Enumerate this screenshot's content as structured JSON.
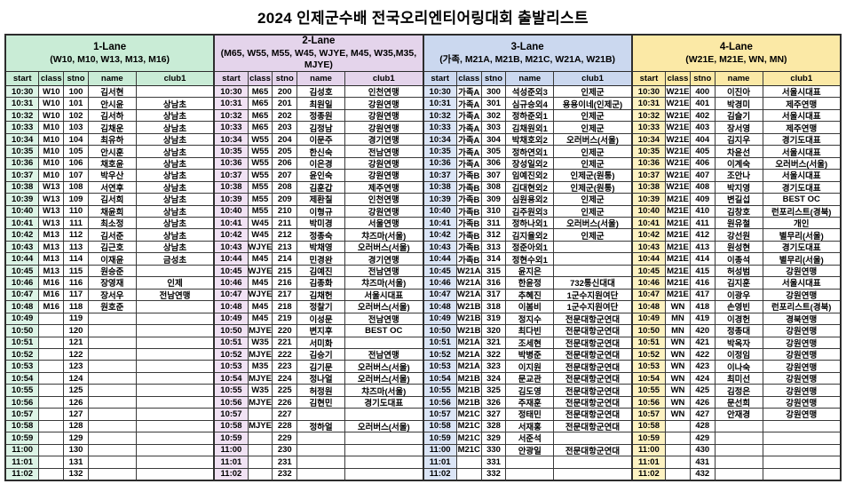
{
  "title": "2024 인제군수배 전국오리엔티어링대회 출발리스트",
  "columns": [
    "start",
    "class",
    "stno",
    "name",
    "club1"
  ],
  "lanes": [
    {
      "name": "1-Lane",
      "classes": "(W10, M10, W13, M13, M16)",
      "header_bg": "#c9ecd6",
      "cell_bg": "#dcf4e6",
      "rows": [
        [
          "10:30",
          "W10",
          "100",
          "김서현",
          ""
        ],
        [
          "10:31",
          "W10",
          "101",
          "안시윤",
          "상남초"
        ],
        [
          "10:32",
          "W10",
          "102",
          "김서하",
          "상남초"
        ],
        [
          "10:33",
          "M10",
          "103",
          "김채운",
          "상남초"
        ],
        [
          "10:34",
          "M10",
          "104",
          "최유하",
          "상남초"
        ],
        [
          "10:35",
          "M10",
          "105",
          "안시훈",
          "상남초"
        ],
        [
          "10:36",
          "M10",
          "106",
          "채호윤",
          "상남초"
        ],
        [
          "10:37",
          "M10",
          "107",
          "박우산",
          "상남초"
        ],
        [
          "10:38",
          "W13",
          "108",
          "서연후",
          "상남초"
        ],
        [
          "10:39",
          "W13",
          "109",
          "김서희",
          "상남초"
        ],
        [
          "10:40",
          "W13",
          "110",
          "채윤희",
          "상남초"
        ],
        [
          "10:41",
          "W13",
          "111",
          "최소정",
          "상남초"
        ],
        [
          "10:42",
          "M13",
          "112",
          "김서준",
          "상남초"
        ],
        [
          "10:43",
          "M13",
          "113",
          "김근호",
          "상남초"
        ],
        [
          "10:44",
          "M13",
          "114",
          "이재윤",
          "금성초"
        ],
        [
          "10:45",
          "M13",
          "115",
          "원승준",
          ""
        ],
        [
          "10:46",
          "M16",
          "116",
          "장영재",
          "인제"
        ],
        [
          "10:47",
          "M16",
          "117",
          "장서우",
          "전남연맹"
        ],
        [
          "10:48",
          "M16",
          "118",
          "원호준",
          ""
        ],
        [
          "10:49",
          "",
          "119",
          "",
          ""
        ],
        [
          "10:50",
          "",
          "120",
          "",
          ""
        ],
        [
          "10:51",
          "",
          "121",
          "",
          ""
        ],
        [
          "10:52",
          "",
          "122",
          "",
          ""
        ],
        [
          "10:53",
          "",
          "123",
          "",
          ""
        ],
        [
          "10:54",
          "",
          "124",
          "",
          ""
        ],
        [
          "10:55",
          "",
          "125",
          "",
          ""
        ],
        [
          "10:56",
          "",
          "126",
          "",
          ""
        ],
        [
          "10:57",
          "",
          "127",
          "",
          ""
        ],
        [
          "10:58",
          "",
          "128",
          "",
          ""
        ],
        [
          "10:59",
          "",
          "129",
          "",
          ""
        ],
        [
          "11:00",
          "",
          "130",
          "",
          ""
        ],
        [
          "11:01",
          "",
          "131",
          "",
          ""
        ],
        [
          "11:02",
          "",
          "132",
          "",
          ""
        ]
      ]
    },
    {
      "name": "2-Lane",
      "classes": "(M65, W55, M55, W45, WJYE, M45, W35,M35, MJYE)",
      "header_bg": "#e4d4eb",
      "cell_bg": "#f1e2f4",
      "rows": [
        [
          "10:30",
          "M65",
          "200",
          "김성호",
          "인천연맹"
        ],
        [
          "10:31",
          "M65",
          "201",
          "최원일",
          "강원연맹"
        ],
        [
          "10:32",
          "M65",
          "202",
          "정종원",
          "강원연맹"
        ],
        [
          "10:33",
          "M65",
          "203",
          "김정남",
          "강원연맹"
        ],
        [
          "10:34",
          "W55",
          "204",
          "이문주",
          "경기연맹"
        ],
        [
          "10:35",
          "W55",
          "205",
          "한신숙",
          "전남연맹"
        ],
        [
          "10:36",
          "W55",
          "206",
          "이은경",
          "강원연맹"
        ],
        [
          "10:37",
          "W55",
          "207",
          "윤인숙",
          "강원연맹"
        ],
        [
          "10:38",
          "M55",
          "208",
          "김훈갑",
          "제주연맹"
        ],
        [
          "10:39",
          "M55",
          "209",
          "제환칠",
          "인천연맹"
        ],
        [
          "10:40",
          "M55",
          "210",
          "이형규",
          "강원연맹"
        ],
        [
          "10:41",
          "W45",
          "211",
          "박미경",
          "서울연맹"
        ],
        [
          "10:42",
          "W45",
          "212",
          "정종숙",
          "챠즈마(서울)"
        ],
        [
          "10:43",
          "WJYE",
          "213",
          "박채영",
          "오러버스(서울)"
        ],
        [
          "10:44",
          "M45",
          "214",
          "민경완",
          "경기연맹"
        ],
        [
          "10:45",
          "WJYE",
          "215",
          "김예진",
          "전남연맹"
        ],
        [
          "10:46",
          "M45",
          "216",
          "김종화",
          "챠즈마(서울)"
        ],
        [
          "10:47",
          "WJYE",
          "217",
          "김채헌",
          "서울시대표"
        ],
        [
          "10:48",
          "M45",
          "218",
          "정찰기",
          "오러버스(서울)"
        ],
        [
          "10:49",
          "M45",
          "219",
          "이성문",
          "전남연맹"
        ],
        [
          "10:50",
          "MJYE",
          "220",
          "변지후",
          "BEST OC"
        ],
        [
          "10:51",
          "W35",
          "221",
          "서미화",
          ""
        ],
        [
          "10:52",
          "MJYE",
          "222",
          "김승기",
          "전남연맹"
        ],
        [
          "10:53",
          "M35",
          "223",
          "김기문",
          "오러버스(서울)"
        ],
        [
          "10:54",
          "MJYE",
          "224",
          "정나얼",
          "오러버스(서울)"
        ],
        [
          "10:55",
          "W35",
          "225",
          "허정원",
          "챠즈마(서울)"
        ],
        [
          "10:56",
          "MJYE",
          "226",
          "김현민",
          "경기도대표"
        ],
        [
          "10:57",
          "",
          "227",
          "",
          ""
        ],
        [
          "10:58",
          "MJYE",
          "228",
          "정하얼",
          "오러버스(서울)"
        ],
        [
          "10:59",
          "",
          "229",
          "",
          ""
        ],
        [
          "11:00",
          "",
          "230",
          "",
          ""
        ],
        [
          "11:01",
          "",
          "231",
          "",
          ""
        ],
        [
          "11:02",
          "",
          "232",
          "",
          ""
        ]
      ]
    },
    {
      "name": "3-Lane",
      "classes": "(가족, M21A, M21B, M21C, W21A, W21B)",
      "header_bg": "#cbd8ef",
      "cell_bg": "#dbe5f6",
      "rows": [
        [
          "10:30",
          "가족A",
          "300",
          "석성준외3",
          "인제군"
        ],
        [
          "10:31",
          "가족A",
          "301",
          "심규승외4",
          "용용이네(인제군)"
        ],
        [
          "10:32",
          "가족A",
          "302",
          "정하준외1",
          "인제군"
        ],
        [
          "10:33",
          "가족A",
          "303",
          "김채원외1",
          "인제군"
        ],
        [
          "10:34",
          "가족A",
          "304",
          "박채호외2",
          "오러버스(서울)"
        ],
        [
          "10:35",
          "가족A",
          "305",
          "정하연외1",
          "인제군"
        ],
        [
          "10:36",
          "가족A",
          "306",
          "장성일외2",
          "인제군"
        ],
        [
          "10:37",
          "가족B",
          "307",
          "임예진외2",
          "인제군(원통)"
        ],
        [
          "10:38",
          "가족B",
          "308",
          "김대현외2",
          "인제군(원통)"
        ],
        [
          "10:39",
          "가족B",
          "309",
          "심원용외2",
          "인제군"
        ],
        [
          "10:40",
          "가족B",
          "310",
          "김주원외3",
          "인제군"
        ],
        [
          "10:41",
          "가족B",
          "311",
          "정하나외1",
          "오러버스(서울)"
        ],
        [
          "10:42",
          "가족B",
          "312",
          "김지율외2",
          "인제군"
        ],
        [
          "10:43",
          "가족B",
          "313",
          "정준아외1",
          ""
        ],
        [
          "10:44",
          "가족B",
          "314",
          "정현수외1",
          ""
        ],
        [
          "10:45",
          "W21A",
          "315",
          "윤지은",
          ""
        ],
        [
          "10:46",
          "W21A",
          "316",
          "한윤정",
          "732통신대대"
        ],
        [
          "10:47",
          "W21A",
          "317",
          "추혜진",
          "1군수지원여단"
        ],
        [
          "10:48",
          "W21B",
          "318",
          "이봄비",
          "1군수지원여단"
        ],
        [
          "10:49",
          "W21B",
          "319",
          "정지수",
          "전문대항군연대"
        ],
        [
          "10:50",
          "W21B",
          "320",
          "최다빈",
          "전문대항군연대"
        ],
        [
          "10:51",
          "M21A",
          "321",
          "조세현",
          "전문대항군연대"
        ],
        [
          "10:52",
          "M21A",
          "322",
          "박병준",
          "전문대항군연대"
        ],
        [
          "10:53",
          "M21A",
          "323",
          "이지원",
          "전문대항군연대"
        ],
        [
          "10:54",
          "M21B",
          "324",
          "문교관",
          "전문대항군연대"
        ],
        [
          "10:55",
          "M21B",
          "325",
          "김도영",
          "전문대항군연대"
        ],
        [
          "10:56",
          "M21B",
          "326",
          "주재훈",
          "전문대항군연대"
        ],
        [
          "10:57",
          "M21C",
          "327",
          "정태민",
          "전문대항군연대"
        ],
        [
          "10:58",
          "M21C",
          "328",
          "서재홍",
          "전문대항군연대"
        ],
        [
          "10:59",
          "M21C",
          "329",
          "서준석",
          ""
        ],
        [
          "11:00",
          "M21C",
          "330",
          "안광일",
          "전문대항군연대"
        ],
        [
          "11:01",
          "",
          "331",
          "",
          ""
        ],
        [
          "11:02",
          "",
          "332",
          "",
          ""
        ]
      ]
    },
    {
      "name": "4-Lane",
      "classes": "(W21E, M21E, WN, MN)",
      "header_bg": "#fbe9a6",
      "cell_bg": "#fdf2c2",
      "rows": [
        [
          "10:30",
          "W21E",
          "400",
          "이진아",
          "서울시대표"
        ],
        [
          "10:31",
          "W21E",
          "401",
          "박경미",
          "제주연맹"
        ],
        [
          "10:32",
          "W21E",
          "402",
          "김슬기",
          "서울시대표"
        ],
        [
          "10:33",
          "W21E",
          "403",
          "장서영",
          "제주연맹"
        ],
        [
          "10:34",
          "W21E",
          "404",
          "김지우",
          "경기도대표"
        ],
        [
          "10:35",
          "W21E",
          "405",
          "차윤선",
          "서울시대표"
        ],
        [
          "10:36",
          "W21E",
          "406",
          "이계숙",
          "오러버스(서울)"
        ],
        [
          "10:37",
          "W21E",
          "407",
          "조안나",
          "서울시대표"
        ],
        [
          "10:38",
          "W21E",
          "408",
          "박지영",
          "경기도대표"
        ],
        [
          "10:39",
          "M21E",
          "409",
          "변길섭",
          "BEST OC"
        ],
        [
          "10:40",
          "M21E",
          "410",
          "김창호",
          "런포리스트(경북)"
        ],
        [
          "10:41",
          "M21E",
          "411",
          "원유철",
          "개인"
        ],
        [
          "10:42",
          "M21E",
          "412",
          "강선원",
          "별무리(서울)"
        ],
        [
          "10:43",
          "M21E",
          "413",
          "원성현",
          "경기도대표"
        ],
        [
          "10:44",
          "M21E",
          "414",
          "이종석",
          "별무리(서울)"
        ],
        [
          "10:45",
          "M21E",
          "415",
          "허성범",
          "강원연맹"
        ],
        [
          "10:46",
          "M21E",
          "416",
          "김지훈",
          "서울시대표"
        ],
        [
          "10:47",
          "M21E",
          "417",
          "이광우",
          "강원연맹"
        ],
        [
          "10:48",
          "WN",
          "418",
          "손영빈",
          "런포리스트(경북)"
        ],
        [
          "10:49",
          "MN",
          "419",
          "이경헌",
          "경북연맹"
        ],
        [
          "10:50",
          "MN",
          "420",
          "정종대",
          "강원연맹"
        ],
        [
          "10:51",
          "WN",
          "421",
          "박옥자",
          "강원연맹"
        ],
        [
          "10:52",
          "WN",
          "422",
          "이정임",
          "강원연맹"
        ],
        [
          "10:53",
          "WN",
          "423",
          "이나숙",
          "강원연맹"
        ],
        [
          "10:54",
          "WN",
          "424",
          "최미선",
          "강원연맹"
        ],
        [
          "10:55",
          "WN",
          "425",
          "김정은",
          "강원연맹"
        ],
        [
          "10:56",
          "WN",
          "426",
          "문선희",
          "강원연맹"
        ],
        [
          "10:57",
          "WN",
          "427",
          "안재경",
          "강원연맹"
        ],
        [
          "10:58",
          "",
          "428",
          "",
          ""
        ],
        [
          "10:59",
          "",
          "429",
          "",
          ""
        ],
        [
          "11:00",
          "",
          "430",
          "",
          ""
        ],
        [
          "11:01",
          "",
          "431",
          "",
          ""
        ],
        [
          "11:02",
          "",
          "432",
          "",
          ""
        ]
      ]
    }
  ]
}
